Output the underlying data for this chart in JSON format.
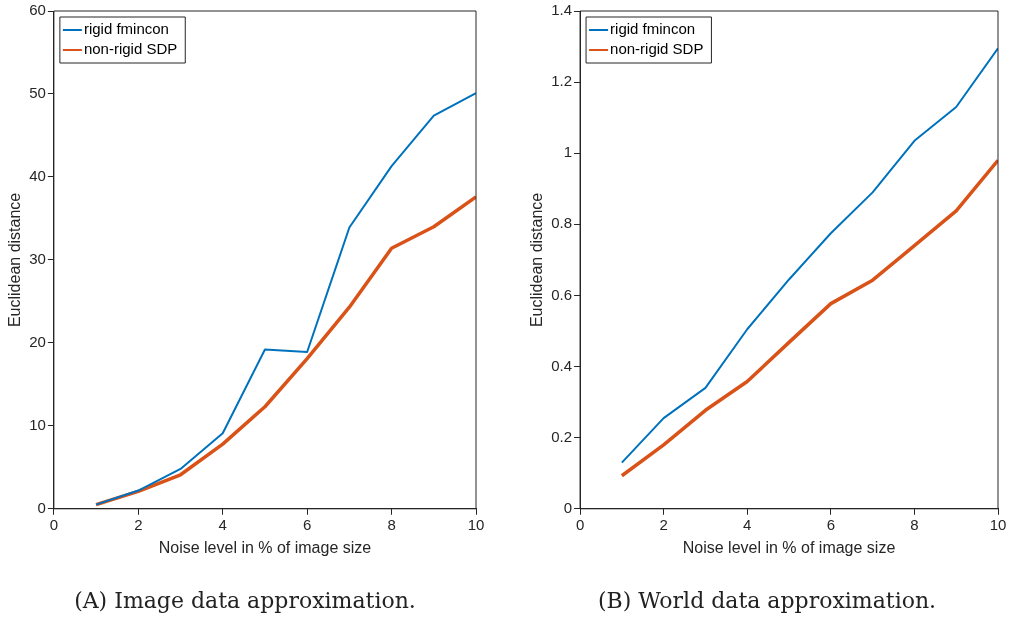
{
  "chart_data": [
    {
      "type": "line",
      "xlabel": "Noise level in % of image size",
      "ylabel": "Euclidean distance",
      "x": [
        1,
        2,
        3,
        4,
        5,
        6,
        7,
        8,
        9,
        10
      ],
      "series": [
        {
          "name": "rigid fmincon",
          "color": "#0072bd",
          "values": [
            0.5,
            2.2,
            4.8,
            9.1,
            19.2,
            18.9,
            33.9,
            41.3,
            47.4,
            50.1
          ]
        },
        {
          "name": "non-rigid SDP",
          "color": "#d95319",
          "values": [
            0.5,
            2.1,
            4.1,
            7.8,
            12.3,
            18.1,
            24.3,
            31.4,
            34.0,
            37.6
          ]
        }
      ],
      "xlim": [
        0,
        10
      ],
      "xticks": [
        0,
        2,
        4,
        6,
        8,
        10
      ],
      "ylim": [
        0,
        60
      ],
      "yticks": [
        0,
        10,
        20,
        30,
        40,
        50,
        60
      ],
      "legend": "top left",
      "grid": false,
      "marker": "none",
      "line_style": "solid",
      "annotations": [
        "(A) Image data approximation."
      ]
    },
    {
      "type": "line",
      "xlabel": "Noise level in % of image size",
      "ylabel": "Euclidean distance",
      "x": [
        1,
        2,
        3,
        4,
        5,
        6,
        7,
        8,
        9,
        10
      ],
      "series": [
        {
          "name": "rigid fmincon",
          "color": "#0072bd",
          "values": [
            0.13,
            0.255,
            0.34,
            0.505,
            0.645,
            0.775,
            0.89,
            1.035,
            1.13,
            1.295
          ]
        },
        {
          "name": "non-rigid SDP",
          "color": "#d95319",
          "values": [
            0.093,
            0.18,
            0.277,
            0.358,
            0.468,
            0.577,
            0.643,
            0.74,
            0.838,
            0.98
          ]
        }
      ],
      "xlim": [
        0,
        10
      ],
      "xticks": [
        0,
        2,
        4,
        6,
        8,
        10
      ],
      "ylim": [
        0,
        1.4
      ],
      "yticks": [
        0,
        0.2,
        0.4,
        0.6,
        0.8,
        1,
        1.2,
        1.4
      ],
      "legend": "top left",
      "grid": false,
      "marker": "none",
      "line_style": "solid",
      "annotations": [
        "(B) World data approximation."
      ]
    }
  ]
}
